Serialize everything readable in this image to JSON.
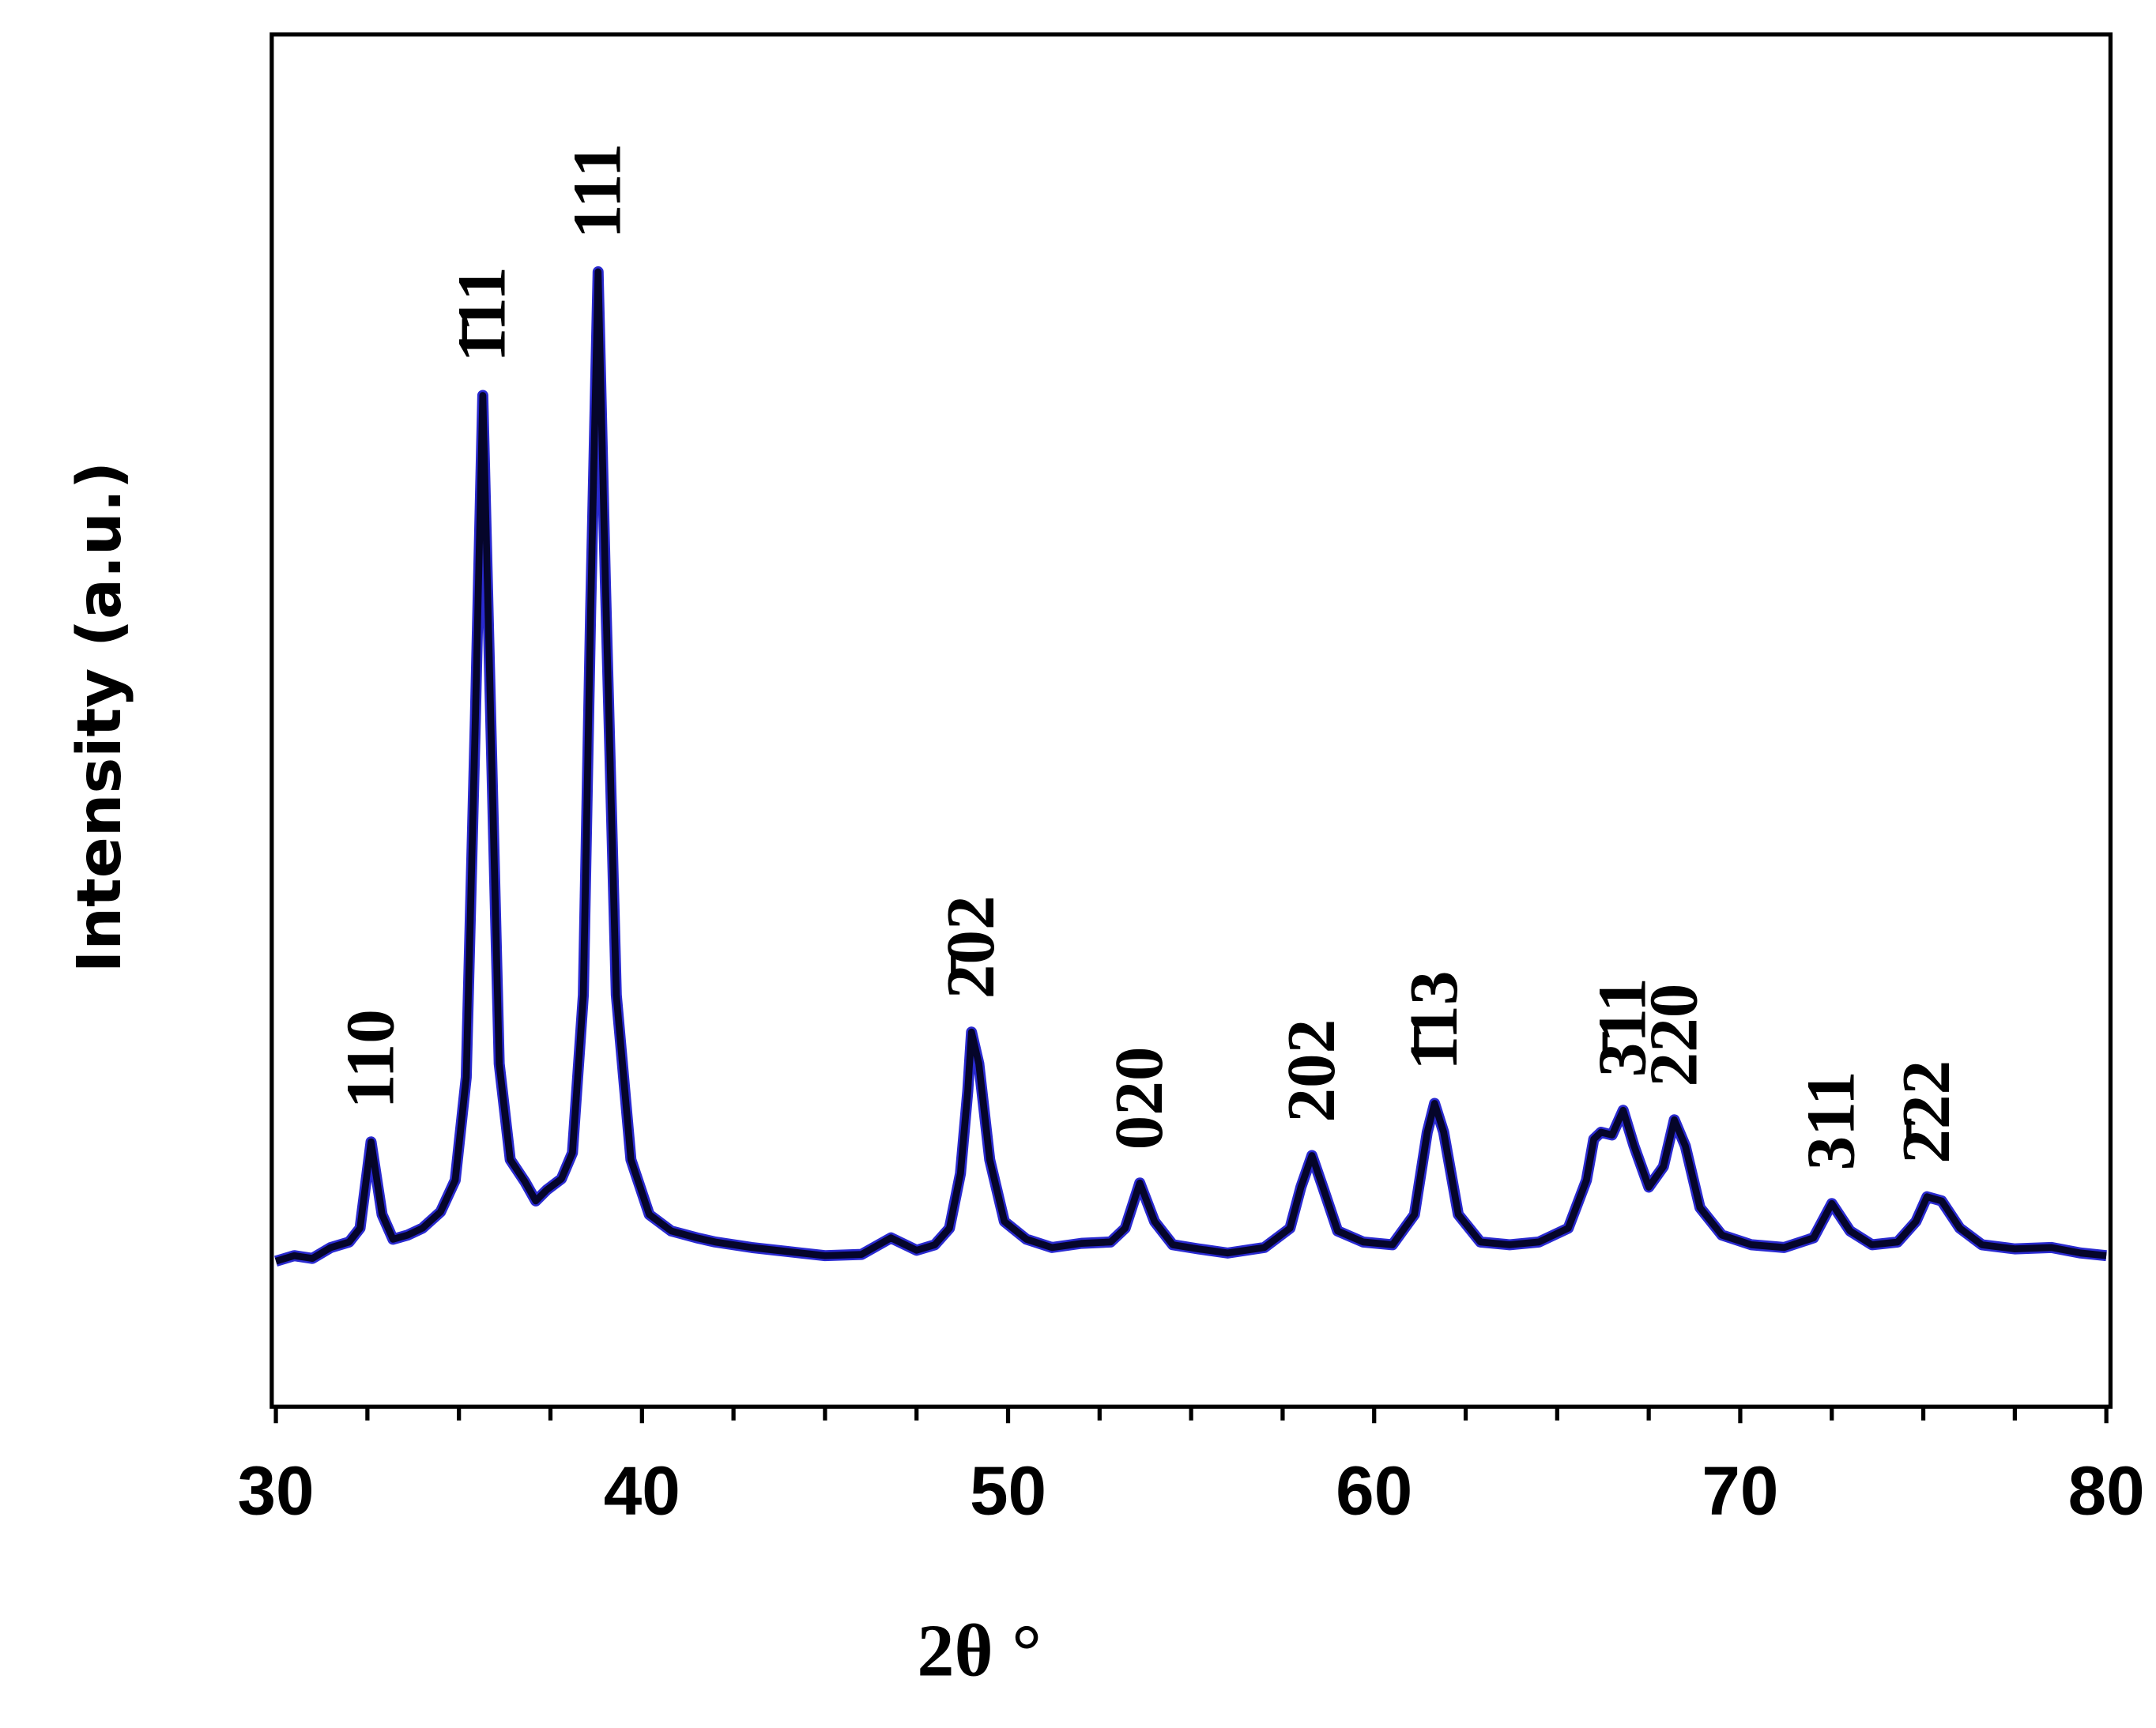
{
  "chart_data": {
    "type": "line",
    "x_label": "2θ °",
    "y_label": "Intensity (a.u.)",
    "xlim": [
      30,
      80
    ],
    "ylim": [
      0,
      100
    ],
    "xticks": [
      30,
      40,
      50,
      60,
      70,
      80
    ],
    "xminorticks": [
      32.5,
      35,
      37.5,
      42.5,
      45,
      47.5,
      52.5,
      55,
      57.5,
      62.5,
      65,
      67.5,
      72.5,
      75,
      77.5
    ],
    "color": "#05052a",
    "x": [
      30,
      30.5,
      31,
      31.5,
      32,
      32.3,
      32.6,
      32.9,
      33.2,
      33.6,
      34,
      34.5,
      34.9,
      35.2,
      35.45,
      35.65,
      35.85,
      36.1,
      36.4,
      36.8,
      37.1,
      37.4,
      37.8,
      38.1,
      38.4,
      38.6,
      38.8,
      39.0,
      39.3,
      39.7,
      40.2,
      40.8,
      41.5,
      42,
      43,
      44,
      45,
      46,
      46.8,
      47.5,
      48,
      48.4,
      48.7,
      48.9,
      49.0,
      49.2,
      49.5,
      49.9,
      50.5,
      51.2,
      52,
      52.8,
      53.2,
      53.6,
      54.0,
      54.5,
      55.2,
      56,
      57,
      57.7,
      58.0,
      58.3,
      58.6,
      59.0,
      59.7,
      60.5,
      61.1,
      61.45,
      61.65,
      61.9,
      62.3,
      62.9,
      63.7,
      64.5,
      65.3,
      65.8,
      66.0,
      66.2,
      66.5,
      66.8,
      67.1,
      67.5,
      67.9,
      68.2,
      68.5,
      68.9,
      69.5,
      70.3,
      71.2,
      72.0,
      72.5,
      73.0,
      73.6,
      74.3,
      74.8,
      75.1,
      75.5,
      76.0,
      76.6,
      77.5,
      78.5,
      79.3,
      80
    ],
    "values": [
      10.6,
      11,
      10.8,
      11.6,
      12,
      13,
      19.3,
      14,
      12.2,
      12.5,
      13,
      14.2,
      16.5,
      24,
      50,
      73.7,
      52,
      25,
      18,
      16.4,
      15,
      15.8,
      16.6,
      18.5,
      30,
      58,
      82.7,
      60,
      30,
      18,
      14,
      12.8,
      12.3,
      12,
      11.6,
      11.3,
      11,
      11.1,
      12.3,
      11.4,
      11.8,
      13,
      17,
      23,
      27.3,
      25,
      18,
      13.5,
      12.2,
      11.6,
      11.9,
      12,
      13,
      16.3,
      13.5,
      11.8,
      11.5,
      11.2,
      11.6,
      13,
      16,
      18.3,
      16,
      12.8,
      12,
      11.8,
      14,
      20,
      22.1,
      20,
      14,
      12,
      11.8,
      12,
      13,
      16.5,
      19.5,
      20,
      19.8,
      21.6,
      19,
      16,
      17.5,
      20.9,
      19,
      14.5,
      12.5,
      11.8,
      11.6,
      12.3,
      14.8,
      12.8,
      11.8,
      12,
      13.5,
      15.3,
      15,
      13,
      11.8,
      11.5,
      11.6,
      11.2,
      11
    ],
    "annotations": [
      {
        "text": "110",
        "x": 32.6
      },
      {
        "text": "1̄11",
        "x": 35.65
      },
      {
        "text": "111",
        "x": 38.8
      },
      {
        "text": "2̄02",
        "x": 49.0
      },
      {
        "text": "020",
        "x": 53.6
      },
      {
        "text": "202",
        "x": 58.3
      },
      {
        "text": "1̄13",
        "x": 61.65
      },
      {
        "text": "3̄11",
        "x": 66.8
      },
      {
        "text": "220",
        "x": 68.2
      },
      {
        "text": "311",
        "x": 72.5
      },
      {
        "text": "2̄22",
        "x": 75.1
      }
    ]
  }
}
